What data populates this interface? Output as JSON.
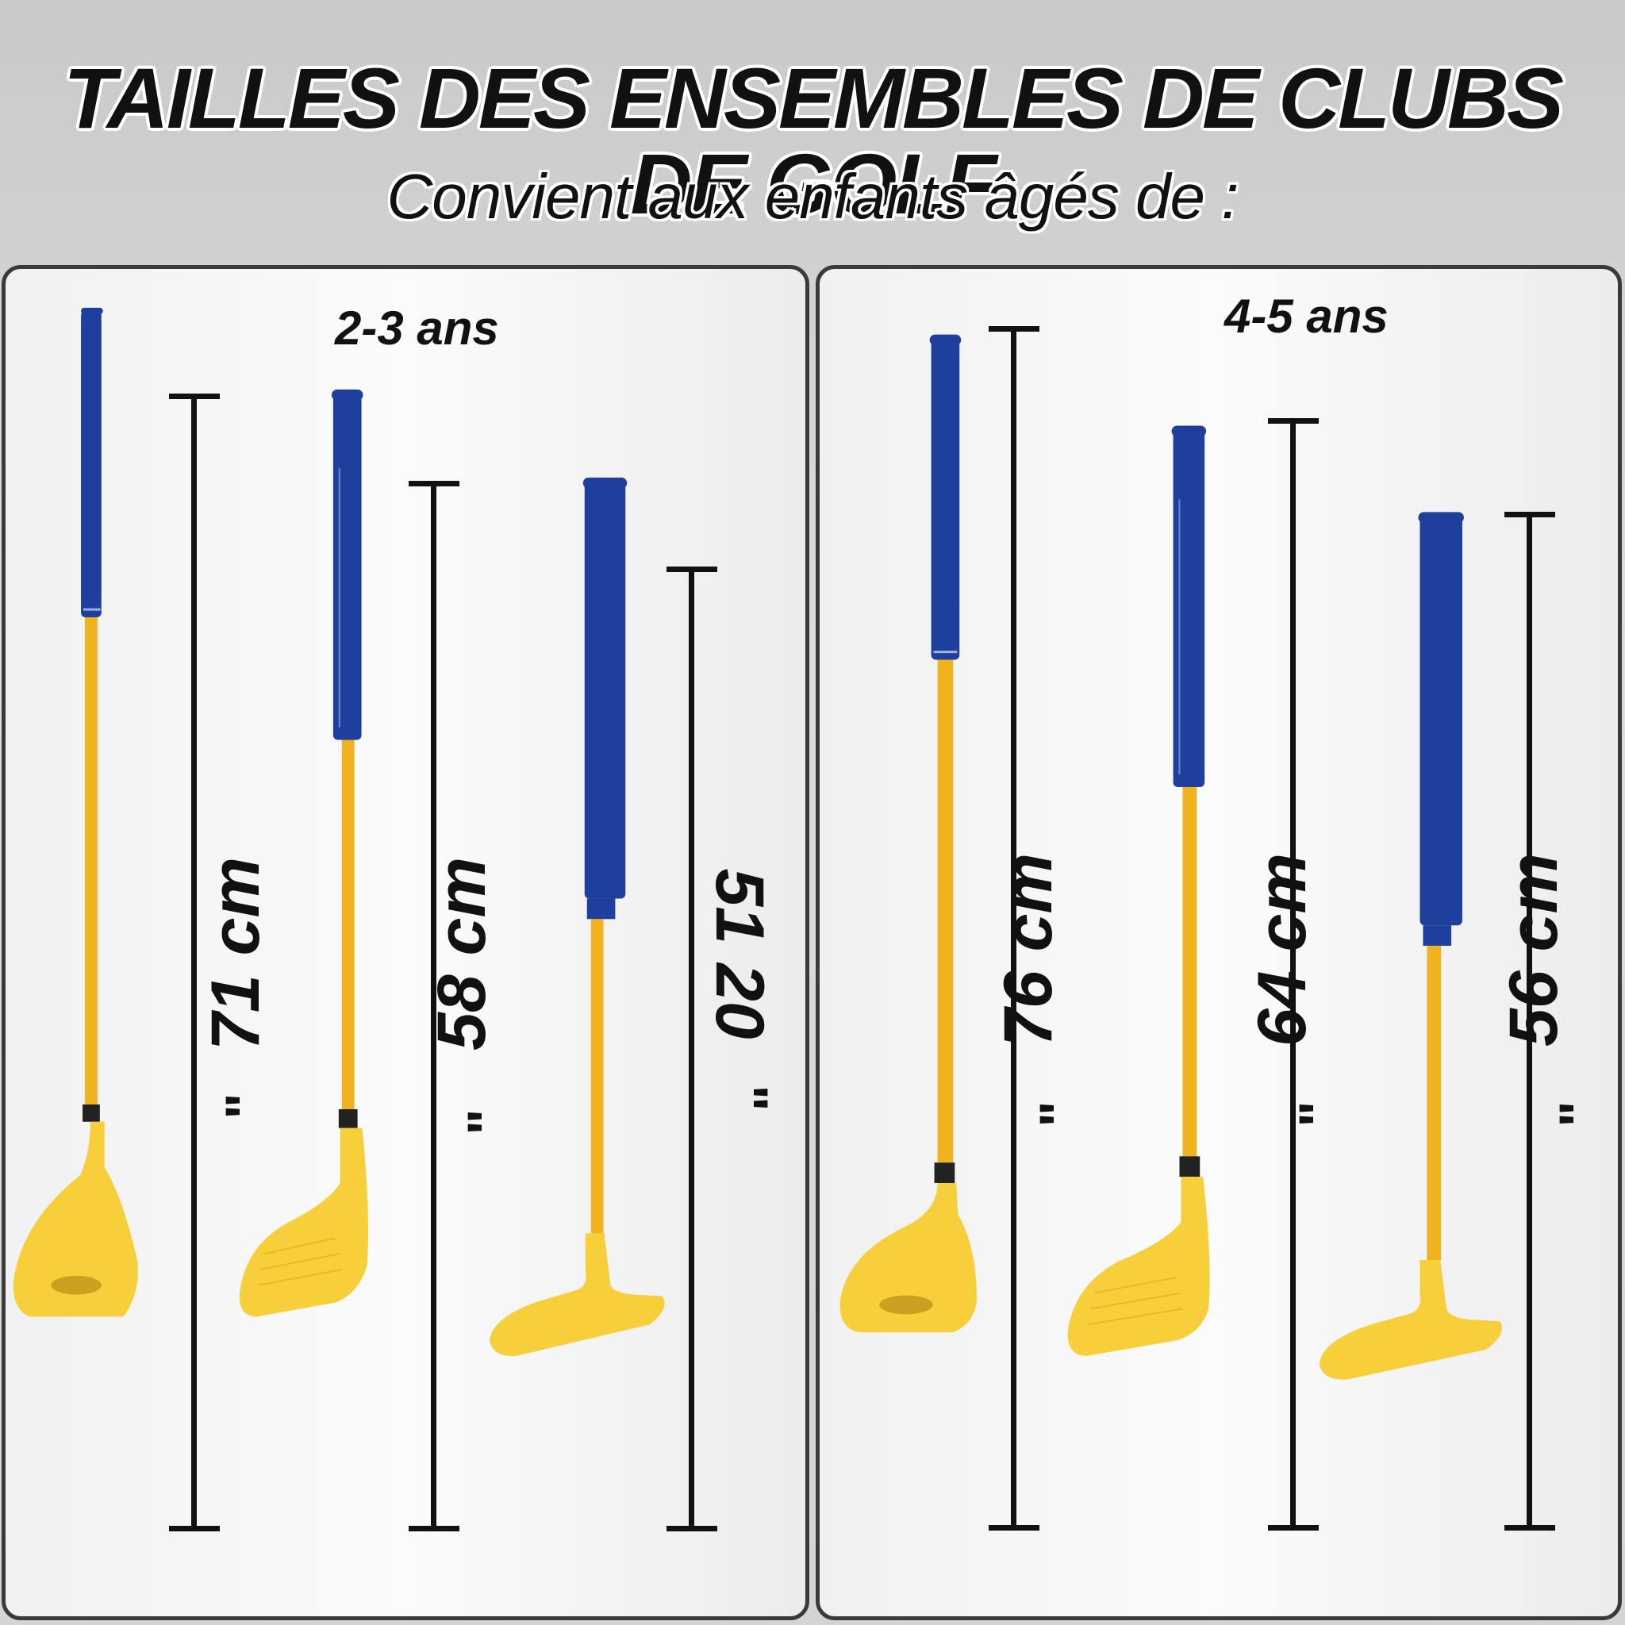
{
  "title": "TAILLES DES ENSEMBLES DE CLUBS DE GOLF",
  "subtitle": "Convient aux enfants âgés de :",
  "groups": [
    {
      "age": "2-3 ans",
      "clubs": [
        {
          "type": "wood",
          "length": "71 cm",
          "mark": "\""
        },
        {
          "type": "iron",
          "length": "58 cm",
          "mark": "\""
        },
        {
          "type": "putter",
          "length": "51 20",
          "mark": "\""
        }
      ]
    },
    {
      "age": "4-5 ans",
      "clubs": [
        {
          "type": "wood",
          "length": "76 cm",
          "mark": "\""
        },
        {
          "type": "iron",
          "length": "64 cm",
          "mark": "\""
        },
        {
          "type": "putter",
          "length": "56 cm",
          "mark": "\""
        }
      ]
    }
  ],
  "colors": {
    "grip": "#1f3f9c",
    "shaft": "#f0b21e",
    "head": "#f6cf3a",
    "ferrule": "#222222",
    "ruler": "#111111"
  }
}
